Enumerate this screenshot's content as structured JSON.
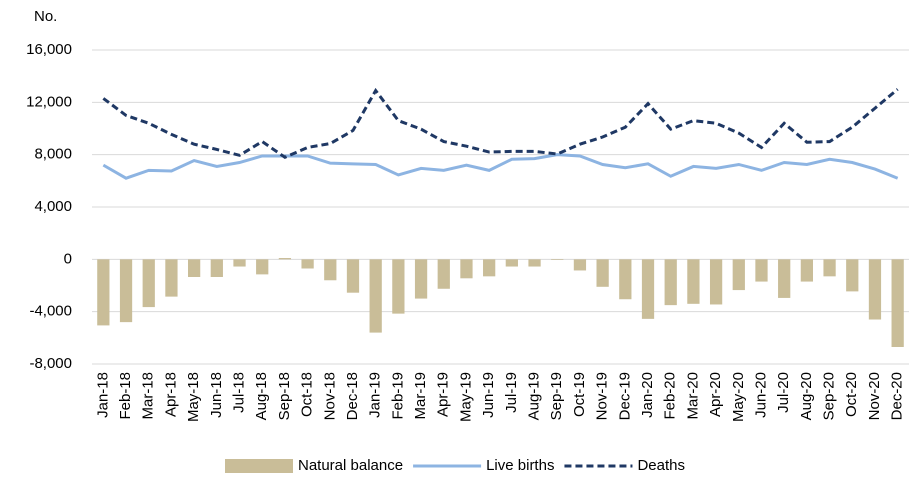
{
  "chart_data": {
    "type": "combo",
    "y_label": "No.",
    "categories": [
      "Jan-18",
      "Feb-18",
      "Mar-18",
      "Apr-18",
      "May-18",
      "Jun-18",
      "Jul-18",
      "Aug-18",
      "Sep-18",
      "Oct-18",
      "Nov-18",
      "Dec-18",
      "Jan-19",
      "Feb-19",
      "Mar-19",
      "Apr-19",
      "May-19",
      "Jun-19",
      "Jul-19",
      "Aug-19",
      "Sep-19",
      "Oct-19",
      "Nov-19",
      "Dec-19",
      "Jan-20",
      "Feb-20",
      "Mar-20",
      "Apr-20",
      "May-20",
      "Jun-20",
      "Jul-20",
      "Aug-20",
      "Sep-20",
      "Oct-20",
      "Nov-20",
      "Dec-20"
    ],
    "series": [
      {
        "name": "Natural balance",
        "type": "bar",
        "color": "#c9bd98",
        "values": [
          -5050,
          -4800,
          -3650,
          -2850,
          -1350,
          -1350,
          -550,
          -1150,
          100,
          -700,
          -1600,
          -2550,
          -5600,
          -4150,
          -3000,
          -2250,
          -1450,
          -1300,
          -550,
          -550,
          -50,
          -850,
          -2100,
          -3050,
          -4550,
          -3500,
          -3400,
          -3450,
          -2350,
          -1700,
          -2950,
          -1700,
          -1300,
          -2450,
          -4600,
          -6700
        ]
      },
      {
        "name": "Live births",
        "type": "line",
        "color": "#8db4e2",
        "values": [
          7200,
          6200,
          6800,
          6750,
          7550,
          7100,
          7400,
          7900,
          7900,
          7900,
          7350,
          7300,
          7250,
          6450,
          6950,
          6800,
          7200,
          6800,
          7650,
          7700,
          8000,
          7900,
          7250,
          7000,
          7300,
          6350,
          7100,
          6950,
          7250,
          6800,
          7400,
          7250,
          7650,
          7400,
          6900,
          6200
        ]
      },
      {
        "name": "Deaths",
        "type": "dashed-line",
        "color": "#1f3864",
        "values": [
          12300,
          11000,
          10400,
          9550,
          8800,
          8400,
          7950,
          9000,
          7800,
          8550,
          8850,
          9850,
          12900,
          10600,
          9950,
          9000,
          8650,
          8200,
          8250,
          8250,
          8050,
          8800,
          9350,
          10100,
          11900,
          9950,
          10600,
          10400,
          9650,
          8550,
          10400,
          8950,
          9000,
          10100,
          11550,
          13000
        ]
      }
    ],
    "ylim": [
      -8000,
      16000
    ],
    "yticks": [
      {
        "value": -8000,
        "label": "-8,000"
      },
      {
        "value": -4000,
        "label": "-4,000"
      },
      0,
      {
        "value": 4000,
        "label": "4,000"
      },
      {
        "value": 8000,
        "label": "8,000"
      },
      {
        "value": 12000,
        "label": "12,000"
      },
      {
        "value": 16000,
        "label": "16,000"
      }
    ],
    "grid": true
  }
}
